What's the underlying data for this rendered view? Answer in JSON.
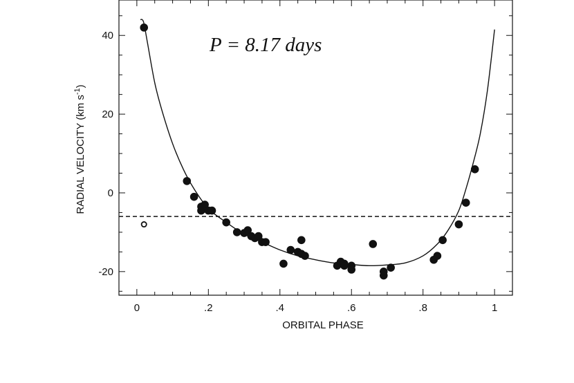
{
  "chart_data": {
    "type": "scatter",
    "xlabel": "ORBITAL PHASE",
    "ylabel_main": "RADIAL  VELOCITY  (km  s",
    "ylabel_sup": "-1",
    "ylabel_close": ")",
    "annotation": "P = 8.17 days",
    "xlim": [
      -0.05,
      1.05
    ],
    "ylim": [
      -26,
      49
    ],
    "x_ticks": [
      {
        "value": 0,
        "label": "0"
      },
      {
        "value": 0.2,
        "label": ".2"
      },
      {
        "value": 0.4,
        "label": ".4"
      },
      {
        "value": 0.6,
        "label": ".6"
      },
      {
        "value": 0.8,
        "label": ".8"
      },
      {
        "value": 1.0,
        "label": "1"
      }
    ],
    "y_ticks": [
      {
        "value": 40,
        "label": "40"
      },
      {
        "value": 20,
        "label": "20"
      },
      {
        "value": 0,
        "label": "0"
      },
      {
        "value": -20,
        "label": "-20"
      }
    ],
    "systemic_velocity": -6,
    "series": [
      {
        "marker": "filled-circle",
        "x": [
          0.02,
          0.14,
          0.16,
          0.18,
          0.18,
          0.19,
          0.2,
          0.21,
          0.25,
          0.28,
          0.3,
          0.31,
          0.32,
          0.33,
          0.34,
          0.35,
          0.36,
          0.41,
          0.43,
          0.45,
          0.46,
          0.46,
          0.47,
          0.56,
          0.57,
          0.58,
          0.58,
          0.6,
          0.6,
          0.66,
          0.69,
          0.69,
          0.71,
          0.83,
          0.84,
          0.855,
          0.9,
          0.92,
          0.945
        ],
        "y": [
          42,
          3,
          -1,
          -3.5,
          -4.5,
          -3,
          -4.5,
          -4.5,
          -7.5,
          -10,
          -10.2,
          -9.5,
          -11,
          -11.5,
          -11,
          -12.5,
          -12.5,
          -18,
          -14.5,
          -15,
          -12,
          -15.5,
          -16,
          -18.5,
          -17.5,
          -18,
          -18.5,
          -18.5,
          -19.5,
          -13,
          -21,
          -20,
          -19,
          -17,
          -16,
          -12,
          -8,
          -2.5,
          6
        ]
      },
      {
        "marker": "open-circle",
        "x": [
          0.02
        ],
        "y": [
          -8
        ]
      }
    ],
    "fit_curve": {
      "x": [
        0.01,
        0.015,
        0.02,
        0.03,
        0.05,
        0.07,
        0.1,
        0.13,
        0.16,
        0.2,
        0.25,
        0.3,
        0.35,
        0.4,
        0.45,
        0.5,
        0.55,
        0.6,
        0.65,
        0.7,
        0.75,
        0.8,
        0.84,
        0.87,
        0.9,
        0.92,
        0.94,
        0.96,
        0.98,
        1.0
      ],
      "y": [
        44,
        44,
        43,
        38,
        28,
        21,
        12.5,
        6,
        1,
        -4,
        -7.5,
        -10.5,
        -12.5,
        -14.5,
        -16,
        -17,
        -17.8,
        -18.2,
        -18.5,
        -18.3,
        -17.8,
        -16,
        -13,
        -9.5,
        -4.5,
        1,
        7.5,
        15,
        26,
        41.5
      ]
    }
  }
}
